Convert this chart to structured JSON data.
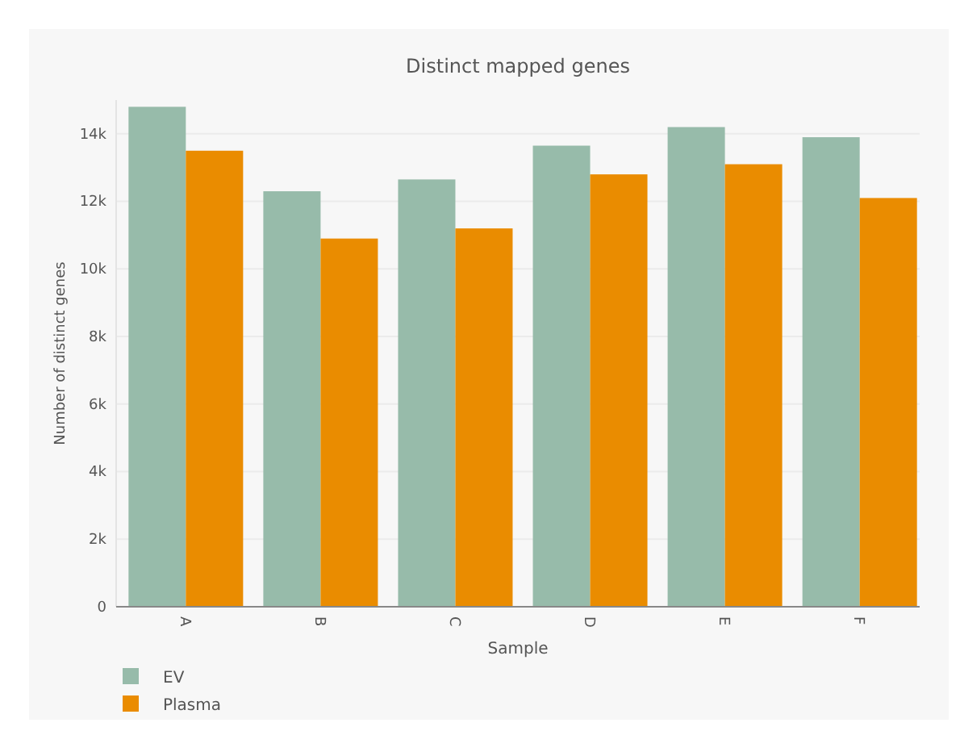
{
  "chart_data": {
    "type": "bar",
    "title": "Distinct mapped genes",
    "xlabel": "Sample",
    "ylabel": "Number of distinct genes",
    "categories": [
      "A",
      "B",
      "C",
      "D",
      "E",
      "F"
    ],
    "series": [
      {
        "name": "EV",
        "color": "#97bbaa",
        "values": [
          14800,
          12300,
          12650,
          13650,
          14200,
          13900
        ]
      },
      {
        "name": "Plasma",
        "color": "#ea8c00",
        "values": [
          13500,
          10900,
          11200,
          12800,
          13100,
          12100
        ]
      }
    ],
    "ylim": [
      0,
      15000
    ],
    "yticks": [
      0,
      {
        "value": 2000,
        "label": "2k"
      },
      {
        "value": 4000,
        "label": "4k"
      },
      {
        "value": 6000,
        "label": "6k"
      },
      {
        "value": 8000,
        "label": "8k"
      },
      {
        "value": 10000,
        "label": "10k"
      },
      {
        "value": 12000,
        "label": "12k"
      },
      {
        "value": 14000,
        "label": "14k"
      }
    ],
    "grid": "y",
    "legend": "bottom left"
  }
}
